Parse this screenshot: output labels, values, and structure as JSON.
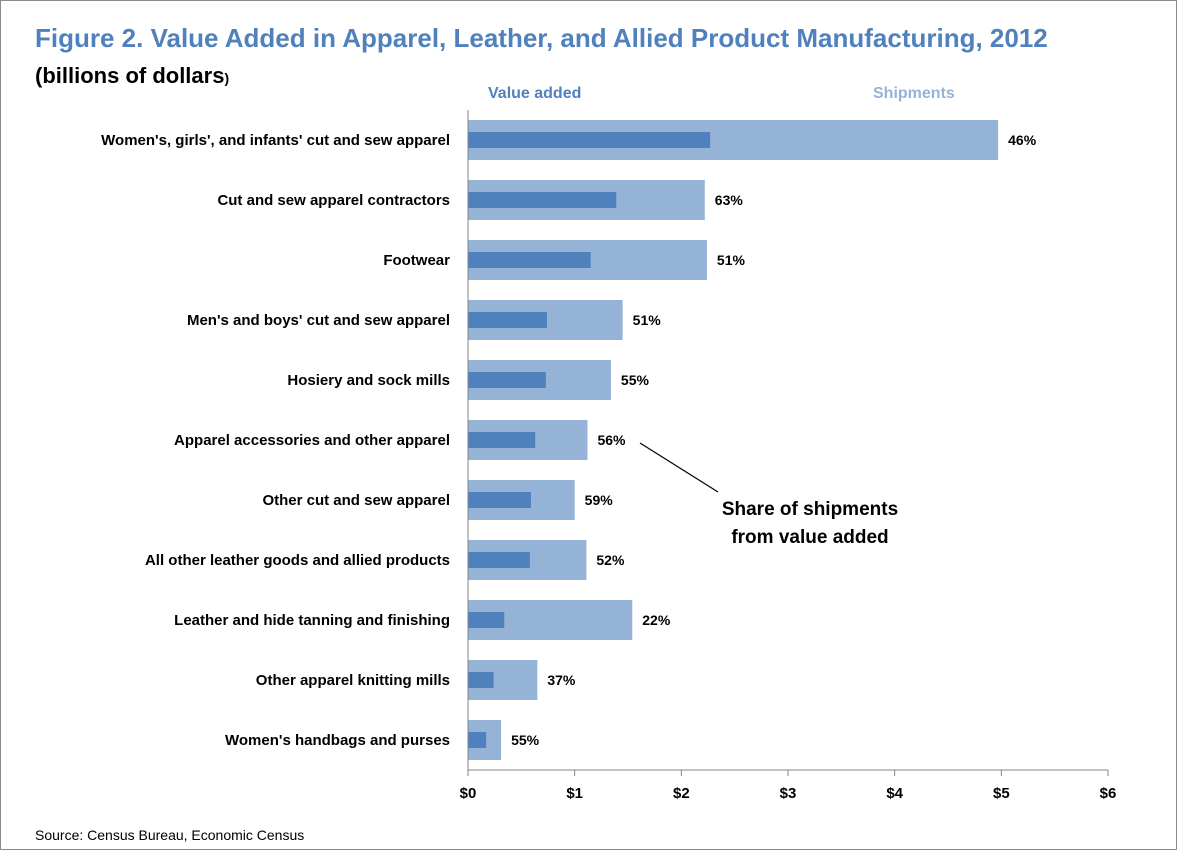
{
  "chart_data": {
    "type": "bar",
    "orientation": "horizontal",
    "title": "Figure 2. Value Added in Apparel, Leather, and Allied Product Manufacturing, 2012",
    "subtitle": "(billions of dollars",
    "subtitle_paren": ")",
    "categories": [
      "Women's, girls', and infants' cut and sew apparel",
      "Cut and sew apparel contractors",
      "Footwear",
      "Men's and boys' cut and sew apparel",
      "Hosiery and sock mills",
      "Apparel accessories and other apparel",
      "Other cut and sew apparel",
      "All other leather goods and allied products",
      "Leather and hide tanning and finishing",
      "Other apparel knitting mills",
      "Women's handbags and purses"
    ],
    "series": [
      {
        "name": "Shipments",
        "color": "#95b3d7",
        "values": [
          4.97,
          2.22,
          2.24,
          1.45,
          1.34,
          1.12,
          1.0,
          1.11,
          1.54,
          0.65,
          0.31
        ]
      },
      {
        "name": "Value added",
        "color": "#4f81bd",
        "values": [
          2.27,
          1.39,
          1.15,
          0.74,
          0.73,
          0.63,
          0.59,
          0.58,
          0.34,
          0.24,
          0.17
        ]
      }
    ],
    "share_labels": [
      "46%",
      "63%",
      "51%",
      "51%",
      "55%",
      "56%",
      "59%",
      "52%",
      "22%",
      "37%",
      "55%"
    ],
    "annotation": [
      "Share of shipments",
      "from value added"
    ],
    "xlim": [
      0,
      6
    ],
    "xticks": [
      0,
      1,
      2,
      3,
      4,
      5,
      6
    ],
    "xtick_labels": [
      "$0",
      "$1",
      "$2",
      "$3",
      "$4",
      "$5",
      "$6"
    ],
    "grid": false,
    "legend_placement": "top"
  },
  "source": "Source: Census Bureau, Economic Census"
}
